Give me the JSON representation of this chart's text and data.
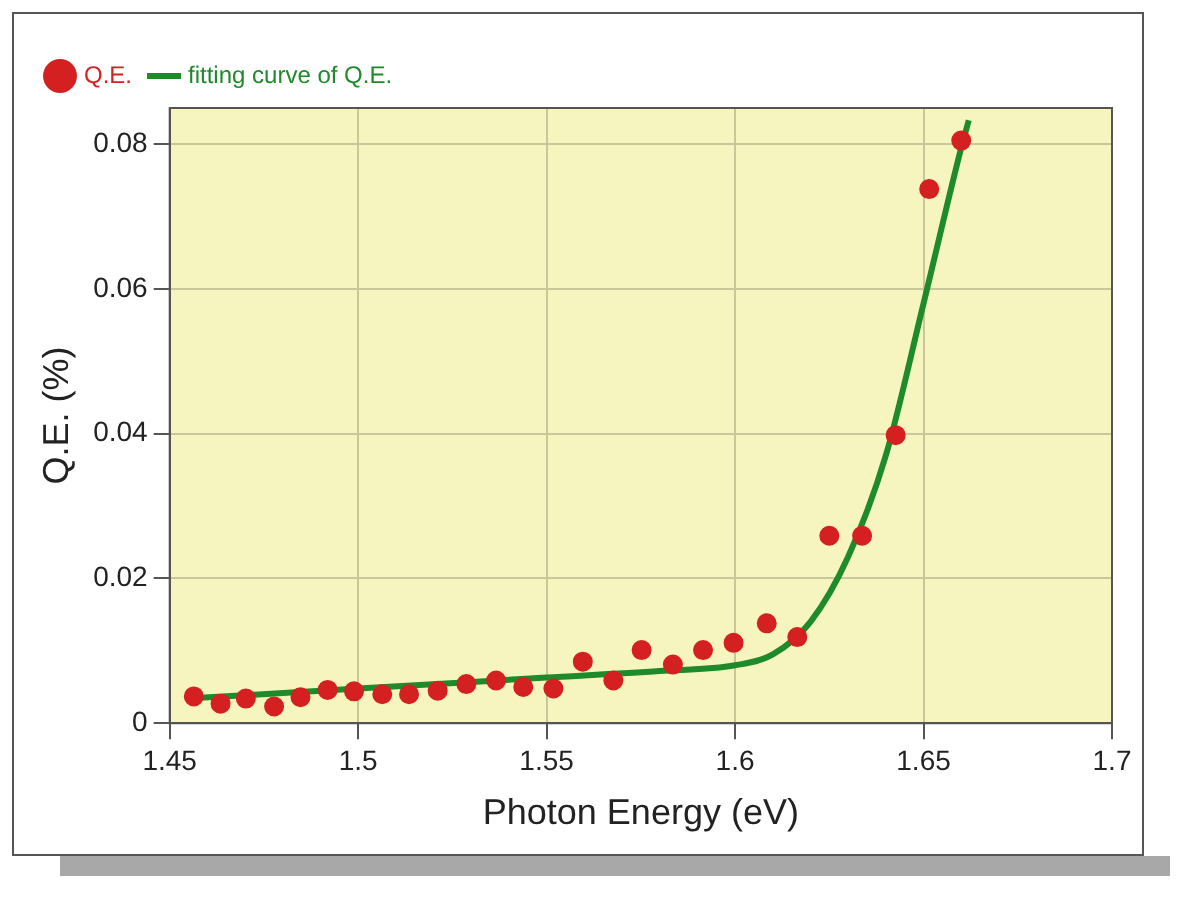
{
  "chart_data": {
    "type": "scatter",
    "xlabel": "Photon Energy (eV)",
    "ylabel": "Q.E. (%)",
    "xlim": [
      1.45,
      1.7
    ],
    "xticks": [
      1.45,
      1.5,
      1.55,
      1.6,
      1.65,
      1.7
    ],
    "ylim": [
      0,
      0.085
    ],
    "yticks": [
      0,
      0.02,
      0.04,
      0.06,
      0.08
    ],
    "grid": true,
    "legend": "top left",
    "marker": "circle",
    "series": [
      {
        "name": "Q.E.",
        "color": "#d42020",
        "x": [
          1.4564,
          1.4635,
          1.4702,
          1.4777,
          1.4847,
          1.4919,
          1.4989,
          1.5064,
          1.5135,
          1.5211,
          1.5287,
          1.5366,
          1.5438,
          1.5518,
          1.5596,
          1.5677,
          1.5752,
          1.5835,
          1.5915,
          1.5996,
          1.6084,
          1.6165,
          1.625,
          1.6337,
          1.6426,
          1.6515,
          1.66
        ],
        "values": [
          0.0037,
          0.0027,
          0.0034,
          0.0023,
          0.0036,
          0.0046,
          0.0044,
          0.004,
          0.004,
          0.0045,
          0.0054,
          0.0059,
          0.005,
          0.0048,
          0.0085,
          0.0059,
          0.0101,
          0.0081,
          0.0101,
          0.0111,
          0.0138,
          0.0119,
          0.0259,
          0.0259,
          0.0398,
          0.0738,
          0.0805
        ]
      },
      {
        "name": "fitting curve of Q.E.",
        "type": "line",
        "marker": "none",
        "color": "#1e8a2a",
        "x": [
          1.458,
          1.5,
          1.55,
          1.58,
          1.6,
          1.61,
          1.62,
          1.63,
          1.64,
          1.65,
          1.66,
          1.662
        ],
        "values": [
          0.0035,
          0.0048,
          0.0063,
          0.0072,
          0.008,
          0.0095,
          0.014,
          0.023,
          0.037,
          0.058,
          0.0795,
          0.0833
        ]
      }
    ]
  }
}
